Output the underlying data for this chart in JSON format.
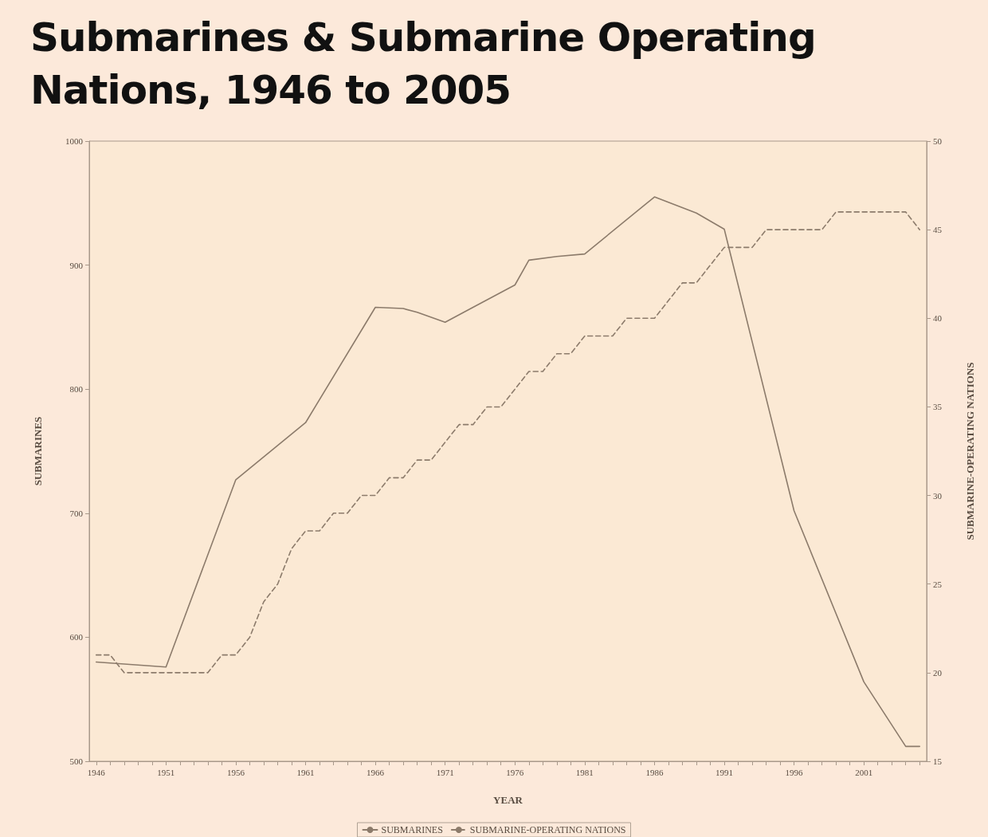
{
  "chart_data": {
    "type": "line",
    "title": "Submarines & Submarine Operating Nations, 1946 to 2005",
    "xlabel": "YEAR",
    "ylabel": "SUBMARINES",
    "y2label": "SUBMARINE-OPERATING NATIONS",
    "xlim": [
      1945.5,
      2005.5
    ],
    "xticks": [
      1946,
      {
        "value": 1947,
        "label": null
      },
      {
        "value": 1948,
        "label": null
      },
      {
        "value": 1949,
        "label": null
      },
      {
        "value": 1950,
        "label": null
      },
      1951,
      {
        "value": 1952,
        "label": null
      },
      {
        "value": 1953,
        "label": null
      },
      {
        "value": 1954,
        "label": null
      },
      {
        "value": 1955,
        "label": null
      },
      1956,
      {
        "value": 1957,
        "label": null
      },
      {
        "value": 1958,
        "label": null
      },
      {
        "value": 1959,
        "label": null
      },
      {
        "value": 1960,
        "label": null
      },
      1961,
      {
        "value": 1962,
        "label": null
      },
      {
        "value": 1963,
        "label": null
      },
      {
        "value": 1964,
        "label": null
      },
      {
        "value": 1965,
        "label": null
      },
      1966,
      {
        "value": 1967,
        "label": null
      },
      {
        "value": 1968,
        "label": null
      },
      {
        "value": 1969,
        "label": null
      },
      {
        "value": 1970,
        "label": null
      },
      1971,
      {
        "value": 1972,
        "label": null
      },
      {
        "value": 1973,
        "label": null
      },
      {
        "value": 1974,
        "label": null
      },
      {
        "value": 1975,
        "label": null
      },
      1976,
      {
        "value": 1977,
        "label": null
      },
      {
        "value": 1978,
        "label": null
      },
      {
        "value": 1979,
        "label": null
      },
      {
        "value": 1980,
        "label": null
      },
      1981,
      {
        "value": 1982,
        "label": null
      },
      {
        "value": 1983,
        "label": null
      },
      {
        "value": 1984,
        "label": null
      },
      {
        "value": 1985,
        "label": null
      },
      1986,
      {
        "value": 1987,
        "label": null
      },
      {
        "value": 1988,
        "label": null
      },
      {
        "value": 1989,
        "label": null
      },
      {
        "value": 1990,
        "label": null
      },
      1991,
      {
        "value": 1992,
        "label": null
      },
      {
        "value": 1993,
        "label": null
      },
      {
        "value": 1994,
        "label": null
      },
      {
        "value": 1995,
        "label": null
      },
      1996,
      {
        "value": 1997,
        "label": null
      },
      {
        "value": 1998,
        "label": null
      },
      {
        "value": 1999,
        "label": null
      },
      {
        "value": 2000,
        "label": null
      },
      2001,
      {
        "value": 2002,
        "label": null
      },
      {
        "value": 2003,
        "label": null
      },
      {
        "value": 2004,
        "label": null
      },
      {
        "value": 2005,
        "label": null
      }
    ],
    "ylim": [
      500,
      1000
    ],
    "yticks": [
      500,
      600,
      700,
      800,
      900,
      1000
    ],
    "y2lim": [
      15,
      50
    ],
    "y2ticks": [
      15,
      20,
      25,
      30,
      35,
      40,
      45,
      50
    ],
    "grid": false,
    "legend": "bottom",
    "marker": "none",
    "series": [
      {
        "name": "SUBMARINES",
        "color": "#8c7b6b",
        "line_style": "solid",
        "x": [
          1946,
          1951,
          1956,
          1961,
          1966,
          1968,
          1969,
          1971,
          1973,
          1976,
          1977,
          1979,
          1981,
          1986,
          1989,
          1991,
          1996,
          2001,
          2004,
          2005
        ],
        "values": [
          580,
          576,
          727,
          773,
          866,
          865,
          862,
          854,
          866,
          884,
          904,
          907,
          909,
          955,
          942,
          929,
          702,
          564,
          512,
          512
        ]
      },
      {
        "name": "SUBMARINE-OPERATING NATIONS",
        "color": "#8c7b6b",
        "line_style": "dashed",
        "axis": "y2",
        "x": [
          1946,
          1947,
          1948,
          1949,
          1950,
          1951,
          1952,
          1953,
          1954,
          1955,
          1956,
          1957,
          1958,
          1959,
          1960,
          1961,
          1962,
          1963,
          1964,
          1965,
          1966,
          1967,
          1968,
          1969,
          1970,
          1971,
          1972,
          1973,
          1974,
          1975,
          1976,
          1977,
          1978,
          1979,
          1980,
          1981,
          1982,
          1983,
          1984,
          1985,
          1986,
          1987,
          1988,
          1989,
          1990,
          1991,
          1992,
          1993,
          1994,
          1995,
          1996,
          1997,
          1998,
          1999,
          2000,
          2001,
          2002,
          2003,
          2004,
          2005
        ],
        "values": [
          21,
          21,
          20,
          20,
          20,
          20,
          20,
          20,
          20,
          21,
          21,
          22,
          24,
          25,
          27,
          28,
          28,
          29,
          29,
          30,
          30,
          31,
          31,
          32,
          32,
          33,
          34,
          34,
          35,
          35,
          36,
          37,
          37,
          38,
          38,
          39,
          39,
          39,
          40,
          40,
          40,
          41,
          42,
          42,
          43,
          44,
          44,
          44,
          45,
          45,
          45,
          45,
          45,
          46,
          46,
          46,
          46,
          46,
          46,
          45
        ]
      }
    ]
  }
}
